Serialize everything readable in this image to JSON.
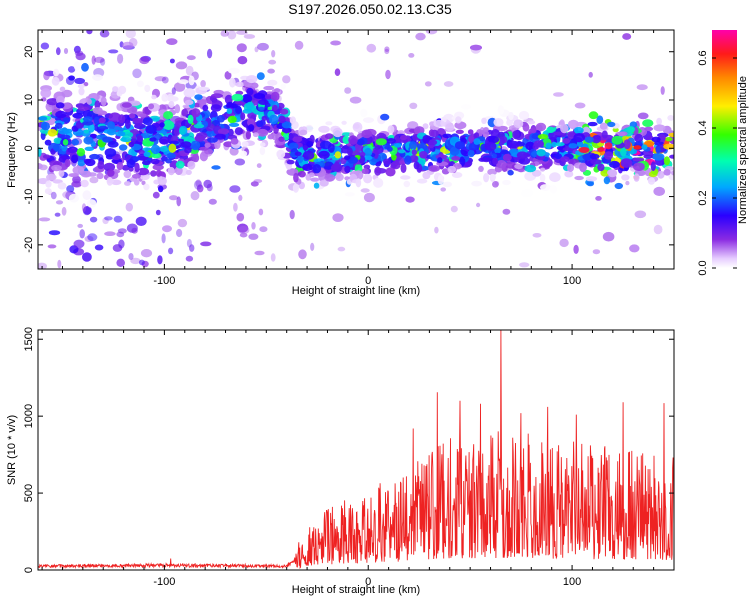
{
  "title": "S197.2026.050.02.13.C35",
  "chart_data": [
    {
      "type": "heatmap",
      "xlabel": "Height of straight line (km)",
      "ylabel": "Frequency (Hz)",
      "xlim": [
        -162,
        150
      ],
      "ylim": [
        -25,
        24.5
      ],
      "xticks": [
        -100,
        0,
        100
      ],
      "yticks": [
        -20,
        -10,
        0,
        10,
        20
      ],
      "ridge_center_hz": [
        {
          "x": -150,
          "y": 3
        },
        {
          "x": -100,
          "y": 1
        },
        {
          "x": -60,
          "y": 8
        },
        {
          "x": -45,
          "y": 7
        },
        {
          "x": -35,
          "y": -2
        },
        {
          "x": 0,
          "y": -1
        },
        {
          "x": 50,
          "y": 0
        },
        {
          "x": 100,
          "y": 0
        },
        {
          "x": 125,
          "y": -1
        },
        {
          "x": 150,
          "y": 0
        }
      ],
      "colorbar": {
        "label": "Normalized spectral amplitude",
        "range": [
          0.0,
          0.68
        ],
        "ticks": [
          0.0,
          0.2,
          0.4,
          0.6
        ]
      }
    },
    {
      "type": "line",
      "xlabel": "Height of straight line (km)",
      "ylabel": "SNR (10 * v/v)",
      "xlim": [
        -162,
        150
      ],
      "ylim": [
        0,
        1560
      ],
      "xticks": [
        -100,
        0,
        100
      ],
      "yticks": [
        0,
        500,
        1000,
        1500
      ],
      "color": "#ee2222",
      "envelope": [
        {
          "x": -162,
          "y": 25
        },
        {
          "x": -100,
          "y": 30
        },
        {
          "x": -40,
          "y": 25
        },
        {
          "x": -34,
          "y": 80
        },
        {
          "x": -25,
          "y": 230
        },
        {
          "x": 0,
          "y": 300
        },
        {
          "x": 20,
          "y": 380
        },
        {
          "x": 40,
          "y": 500
        },
        {
          "x": 70,
          "y": 520
        },
        {
          "x": 100,
          "y": 480
        },
        {
          "x": 150,
          "y": 420
        }
      ],
      "peaks": [
        {
          "x": -97,
          "y": 75
        },
        {
          "x": -34,
          "y": 180
        },
        {
          "x": 22,
          "y": 920
        },
        {
          "x": 34,
          "y": 1155
        },
        {
          "x": 45,
          "y": 1100
        },
        {
          "x": 55,
          "y": 1080
        },
        {
          "x": 65,
          "y": 1560
        },
        {
          "x": 75,
          "y": 1020
        },
        {
          "x": 88,
          "y": 1060
        },
        {
          "x": 102,
          "y": 1010
        },
        {
          "x": 125,
          "y": 1090
        },
        {
          "x": 145,
          "y": 1085
        }
      ]
    }
  ]
}
